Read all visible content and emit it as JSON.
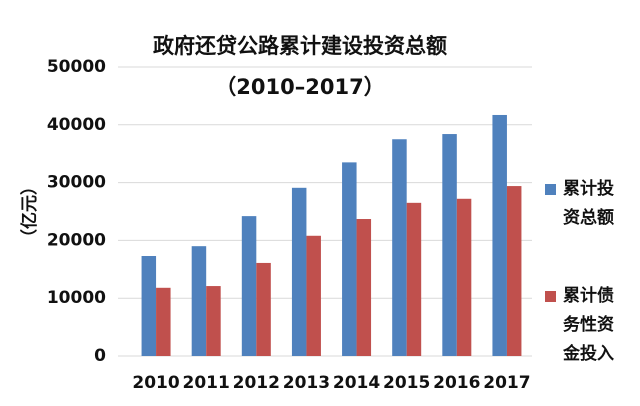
{
  "chart_data": {
    "type": "bar",
    "title": "政府还贷公路累计建设投资总额",
    "subtitle": "（2010–2017）",
    "y_label": "（亿元）",
    "categories": [
      "2010",
      "2011",
      "2012",
      "2013",
      "2014",
      "2015",
      "2016",
      "2017"
    ],
    "series": [
      {
        "name": "累计投资总额",
        "color": "#4f81bd",
        "values": [
          17300,
          19000,
          24200,
          29100,
          33500,
          37500,
          38400,
          41700
        ]
      },
      {
        "name": "累计债务性资金投入",
        "color": "#c0504d",
        "values": [
          11800,
          12100,
          16100,
          20800,
          23700,
          26500,
          27200,
          29400
        ]
      }
    ],
    "ylim": [
      0,
      50000
    ],
    "yticks": [
      0,
      10000,
      20000,
      30000,
      40000,
      50000
    ],
    "grid": true
  }
}
